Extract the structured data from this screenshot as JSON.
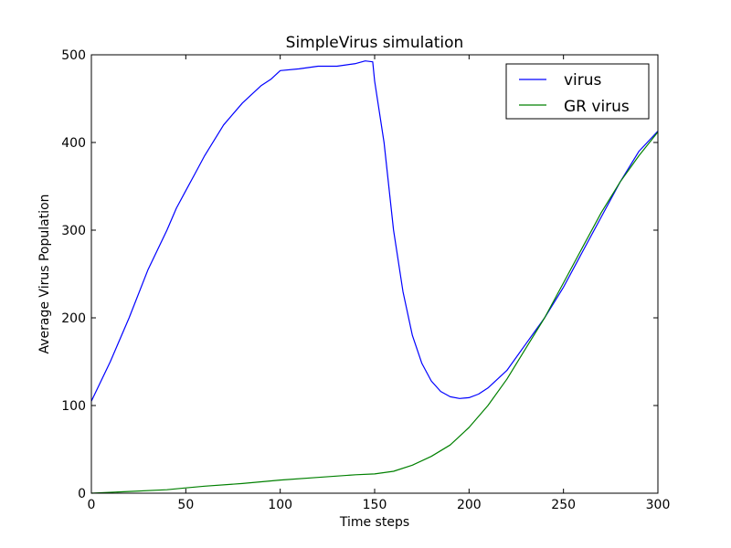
{
  "chart_data": {
    "type": "line",
    "title": "SimpleVirus simulation",
    "xlabel": "Time steps",
    "ylabel": "Average Virus Population",
    "xlim": [
      0,
      300
    ],
    "ylim": [
      0,
      500
    ],
    "xticks": [
      0,
      50,
      100,
      150,
      200,
      250,
      300
    ],
    "yticks": [
      0,
      100,
      200,
      300,
      400,
      500
    ],
    "grid": false,
    "legend_position": "top-right",
    "series": [
      {
        "name": "virus",
        "color": "#0000ff",
        "x": [
          0,
          10,
          20,
          30,
          40,
          45,
          50,
          55,
          60,
          70,
          80,
          90,
          95,
          100,
          110,
          120,
          130,
          140,
          145,
          149,
          150,
          155,
          160,
          165,
          170,
          175,
          180,
          185,
          190,
          195,
          200,
          205,
          210,
          220,
          230,
          240,
          250,
          260,
          270,
          280,
          290,
          300
        ],
        "y": [
          105,
          150,
          200,
          255,
          300,
          325,
          345,
          365,
          385,
          420,
          445,
          465,
          472,
          482,
          484,
          487,
          487,
          490,
          493,
          492,
          470,
          400,
          300,
          230,
          180,
          148,
          128,
          116,
          110,
          108,
          109,
          113,
          120,
          140,
          170,
          200,
          235,
          275,
          315,
          355,
          390,
          413
        ]
      },
      {
        "name": "GR virus",
        "color": "#008000",
        "x": [
          0,
          20,
          40,
          50,
          60,
          80,
          100,
          120,
          140,
          150,
          160,
          170,
          180,
          190,
          200,
          210,
          220,
          230,
          240,
          250,
          260,
          270,
          280,
          290,
          300
        ],
        "y": [
          0,
          2,
          4,
          6,
          8,
          11,
          15,
          18,
          21,
          22,
          25,
          32,
          42,
          55,
          75,
          100,
          130,
          165,
          200,
          240,
          280,
          320,
          355,
          385,
          412
        ]
      }
    ]
  }
}
